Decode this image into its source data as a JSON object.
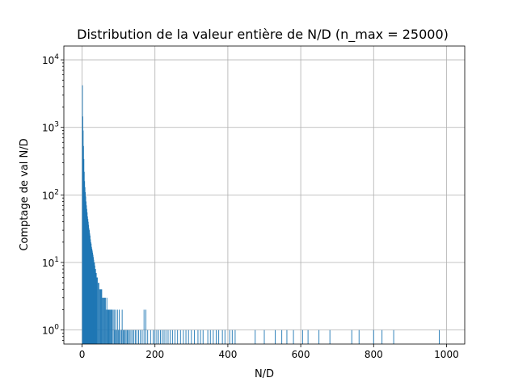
{
  "chart_data": {
    "type": "bar",
    "title": "Distribution de la valeur entière de N/D (n_max = 25000)",
    "xlabel": "N/D",
    "ylabel": "Comptage de val N/D",
    "xlim": [
      -50,
      1050
    ],
    "ylim": [
      0.62,
      16000
    ],
    "yscale": "log",
    "grid": true,
    "color": "#1f77b4",
    "x_ticks": [
      0,
      200,
      400,
      600,
      800,
      1000
    ],
    "y_ticks": [
      {
        "value": 1,
        "base": "10",
        "exp": "0"
      },
      {
        "value": 10,
        "base": "10",
        "exp": "1"
      },
      {
        "value": 100,
        "base": "10",
        "exp": "2"
      },
      {
        "value": 1000,
        "base": "10",
        "exp": "3"
      },
      {
        "value": 10000,
        "base": "10",
        "exp": "4"
      }
    ],
    "bars": [
      [
        1,
        4200
      ],
      [
        2,
        1450
      ],
      [
        3,
        900
      ],
      [
        4,
        530
      ],
      [
        5,
        340
      ],
      [
        6,
        220
      ],
      [
        7,
        160
      ],
      [
        8,
        130
      ],
      [
        9,
        110
      ],
      [
        10,
        95
      ],
      [
        11,
        80
      ],
      [
        12,
        70
      ],
      [
        13,
        62
      ],
      [
        14,
        55
      ],
      [
        15,
        48
      ],
      [
        16,
        44
      ],
      [
        17,
        40
      ],
      [
        18,
        36
      ],
      [
        19,
        32
      ],
      [
        20,
        30
      ],
      [
        21,
        27
      ],
      [
        22,
        25
      ],
      [
        23,
        22
      ],
      [
        24,
        20
      ],
      [
        25,
        19
      ],
      [
        26,
        17
      ],
      [
        27,
        16
      ],
      [
        28,
        15
      ],
      [
        29,
        14
      ],
      [
        30,
        13
      ],
      [
        31,
        12
      ],
      [
        32,
        11
      ],
      [
        33,
        10
      ],
      [
        34,
        10
      ],
      [
        35,
        9
      ],
      [
        36,
        8
      ],
      [
        37,
        8
      ],
      [
        38,
        7
      ],
      [
        39,
        7
      ],
      [
        40,
        6
      ],
      [
        42,
        6
      ],
      [
        44,
        5
      ],
      [
        46,
        5
      ],
      [
        48,
        4
      ],
      [
        50,
        4
      ],
      [
        52,
        4
      ],
      [
        54,
        4
      ],
      [
        56,
        3
      ],
      [
        58,
        3
      ],
      [
        60,
        3
      ],
      [
        62,
        3
      ],
      [
        64,
        3
      ],
      [
        66,
        2
      ],
      [
        68,
        3
      ],
      [
        70,
        2
      ],
      [
        72,
        2
      ],
      [
        74,
        2
      ],
      [
        76,
        2
      ],
      [
        78,
        2
      ],
      [
        80,
        2
      ],
      [
        82,
        2
      ],
      [
        85,
        2
      ],
      [
        88,
        2
      ],
      [
        90,
        1
      ],
      [
        92,
        2
      ],
      [
        95,
        1
      ],
      [
        97,
        2
      ],
      [
        100,
        1
      ],
      [
        102,
        2
      ],
      [
        105,
        1
      ],
      [
        108,
        1
      ],
      [
        110,
        2
      ],
      [
        113,
        1
      ],
      [
        116,
        1
      ],
      [
        118,
        1
      ],
      [
        121,
        1
      ],
      [
        124,
        1
      ],
      [
        127,
        1
      ],
      [
        130,
        1
      ],
      [
        134,
        1
      ],
      [
        138,
        1
      ],
      [
        142,
        1
      ],
      [
        146,
        1
      ],
      [
        150,
        1
      ],
      [
        155,
        1
      ],
      [
        160,
        1
      ],
      [
        165,
        1
      ],
      [
        170,
        2
      ],
      [
        175,
        2
      ],
      [
        180,
        1
      ],
      [
        188,
        1
      ],
      [
        195,
        1
      ],
      [
        200,
        1
      ],
      [
        205,
        1
      ],
      [
        210,
        1
      ],
      [
        215,
        1
      ],
      [
        220,
        1
      ],
      [
        225,
        1
      ],
      [
        230,
        1
      ],
      [
        236,
        1
      ],
      [
        242,
        1
      ],
      [
        248,
        1
      ],
      [
        255,
        1
      ],
      [
        262,
        1
      ],
      [
        270,
        1
      ],
      [
        278,
        1
      ],
      [
        285,
        1
      ],
      [
        292,
        1
      ],
      [
        300,
        1
      ],
      [
        308,
        1
      ],
      [
        318,
        1
      ],
      [
        325,
        1
      ],
      [
        332,
        1
      ],
      [
        345,
        1
      ],
      [
        352,
        1
      ],
      [
        360,
        1
      ],
      [
        368,
        1
      ],
      [
        375,
        1
      ],
      [
        385,
        1
      ],
      [
        392,
        1
      ],
      [
        405,
        1
      ],
      [
        412,
        1
      ],
      [
        420,
        1
      ],
      [
        475,
        1
      ],
      [
        500,
        1
      ],
      [
        530,
        1
      ],
      [
        548,
        1
      ],
      [
        562,
        1
      ],
      [
        580,
        1
      ],
      [
        605,
        1
      ],
      [
        620,
        1
      ],
      [
        650,
        1
      ],
      [
        680,
        1
      ],
      [
        740,
        1
      ],
      [
        760,
        1
      ],
      [
        800,
        1
      ],
      [
        823,
        1
      ],
      [
        855,
        1
      ],
      [
        980,
        1
      ]
    ]
  }
}
